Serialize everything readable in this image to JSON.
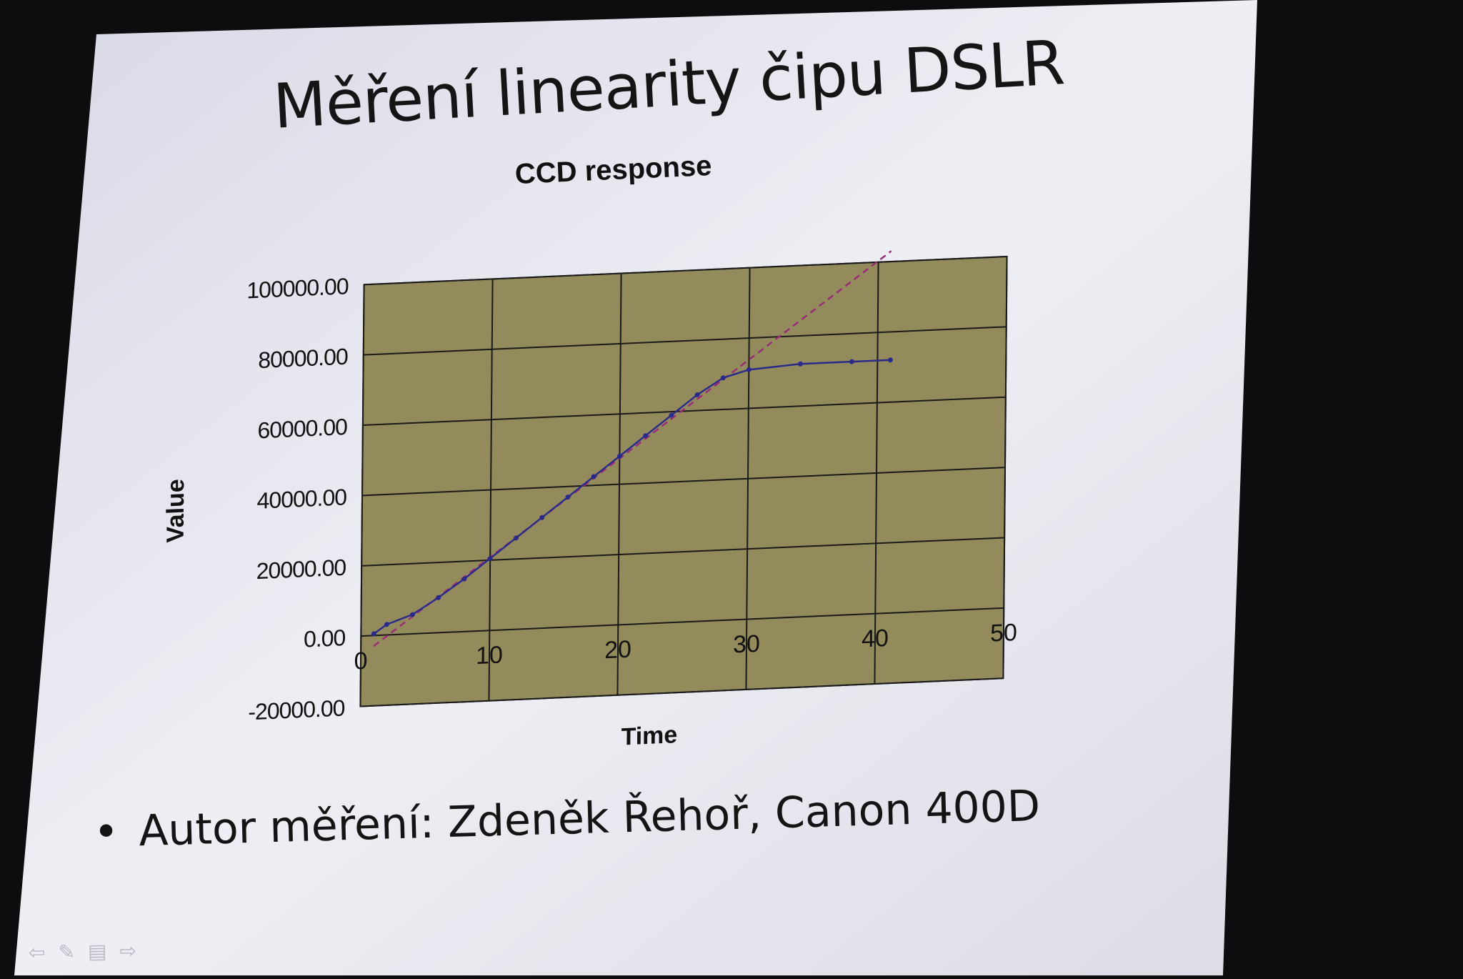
{
  "slide": {
    "title": "Měření linearity čipu DSLR",
    "bullet": "Autor měření: Zdeněk Řehoř, Canon 400D"
  },
  "colors": {
    "plot_background": "#948b5c",
    "grid": "#1a1a1a",
    "data_line": "#2a2a8a",
    "trend_line": "#9a2a7a",
    "slide_background": "#e4e4ee"
  },
  "chart_data": {
    "type": "scatter",
    "title": "CCD response",
    "xlabel": "Time",
    "ylabel": "Value",
    "xlim": [
      0,
      50
    ],
    "ylim": [
      -20000,
      100000
    ],
    "x_ticks": [
      "0",
      "10",
      "20",
      "30",
      "40",
      "50"
    ],
    "y_ticks": [
      "-20000.00",
      "0.00",
      "20000.00",
      "40000.00",
      "60000.00",
      "80000.00",
      "100000.00"
    ],
    "grid": true,
    "legend": "none",
    "series": [
      {
        "style": "line-with-markers",
        "x": [
          1,
          2,
          4,
          6,
          8,
          10,
          12,
          14,
          16,
          18,
          20,
          22,
          24,
          26,
          28,
          30,
          34,
          38,
          41
        ],
        "y": [
          500,
          3000,
          5500,
          10000,
          15000,
          20500,
          26000,
          31500,
          37000,
          42500,
          48000,
          53500,
          59000,
          64500,
          69000,
          71000,
          72000,
          72000,
          72000
        ]
      },
      {
        "style": "dashed-trendline",
        "x": [
          1,
          41
        ],
        "y": [
          -3000,
          103000
        ]
      }
    ]
  }
}
